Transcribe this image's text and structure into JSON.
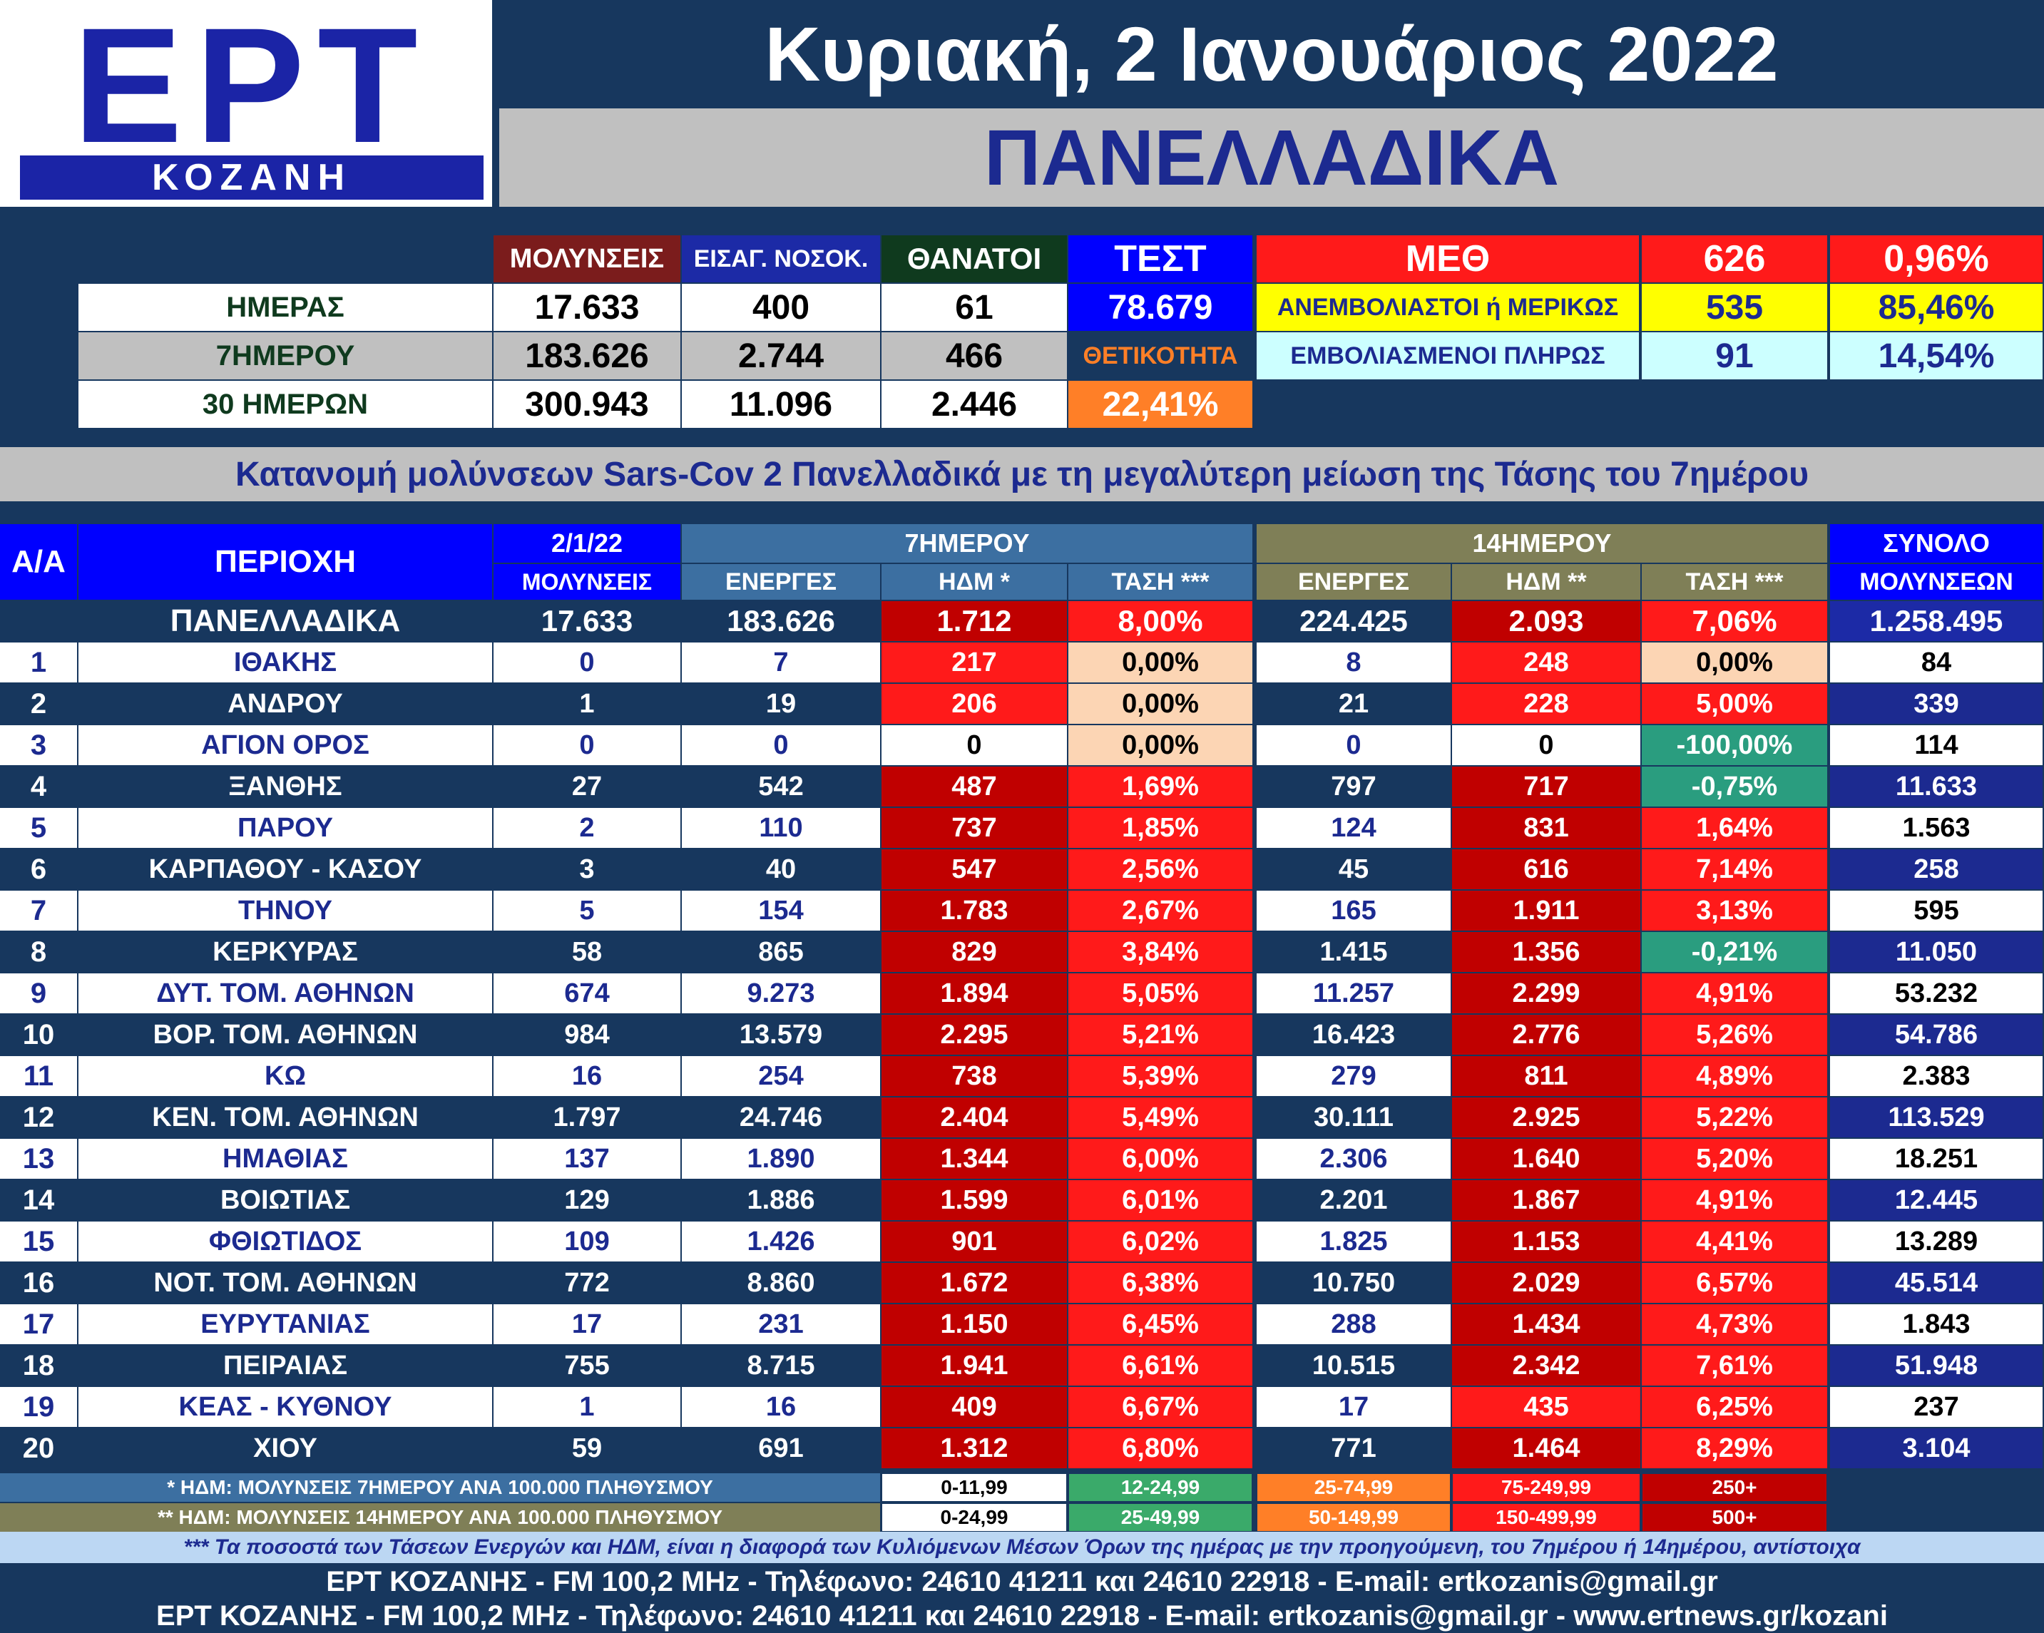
{
  "logo": {
    "title": "ΕΡΤ",
    "subtitle": "ΚΟΖΑΝΗ"
  },
  "date": "Κυριακή, 2 Ιανουάριος 2022",
  "region": "ΠΑΝΕΛΛΑΔΙΚΑ",
  "summary": {
    "headers": {
      "infections": "ΜΟΛΥΝΣΕΙΣ",
      "admissions": "ΕΙΣΑΓ. ΝΟΣΟΚ.",
      "deaths": "ΘΑΝΑΤΟΙ",
      "tests": "ΤΕΣΤ"
    },
    "rows": [
      {
        "label": "ΗΜΕΡΑΣ",
        "infections": "17.633",
        "admissions": "400",
        "deaths": "61"
      },
      {
        "label": "7ΗΜΕΡΟΥ",
        "infections": "183.626",
        "admissions": "2.744",
        "deaths": "466"
      },
      {
        "label": "30 ΗΜΕΡΩΝ",
        "infections": "300.943",
        "admissions": "11.096",
        "deaths": "2.446"
      }
    ],
    "tests_value": "78.679",
    "positivity_label": "ΘΕΤΙΚΟΤΗΤΑ",
    "positivity_value": "22,41%"
  },
  "icu": {
    "label": "ΜΕΘ",
    "total": "626",
    "total_pct": "0,96%",
    "unvaccinated_label": "ΑΝΕΜΒΟΛΙΑΣΤΟΙ ή ΜΕΡΙΚΩΣ",
    "unvaccinated": "535",
    "unvaccinated_pct": "85,46%",
    "vaccinated_label": "ΕΜΒΟΛΙΑΣΜΕΝΟΙ ΠΛΗΡΩΣ",
    "vaccinated": "91",
    "vaccinated_pct": "14,54%"
  },
  "subtitle": "Κατανομή μολύνσεων Sars-Cov 2 Πανελλαδικά με τη μεγαλύτερη μείωση της Τάσης του 7ημέρου",
  "table": {
    "headers": {
      "aa": "Α/Α",
      "region": "ΠΕΡΙΟΧΗ",
      "date": "2/1/22",
      "date_sub": "ΜΟΛΥΝΣΕΙΣ",
      "week": "7ΗΜΕΡΟΥ",
      "fortnight": "14ΗΜΕΡΟΥ",
      "active7": "ΕΝΕΡΓΕΣ",
      "hdm7": "ΗΔΜ *",
      "trend7": "ΤΑΣΗ ***",
      "active14": "ΕΝΕΡΓΕΣ",
      "hdm14": "ΗΔΜ **",
      "trend14": "ΤΑΣΗ ***",
      "total": "ΣΥΝΟΛΟ",
      "total_sub": "ΜΟΛΥΝΣΕΩΝ"
    },
    "national": {
      "name": "ΠΑΝΕΛΛΑΔΙΚΑ",
      "infections": "17.633",
      "active7": "183.626",
      "hdm7": "1.712",
      "trend7": "8,00%",
      "active14": "224.425",
      "hdm14": "2.093",
      "trend14": "7,06%",
      "total": "1.258.495"
    },
    "rows": [
      {
        "aa": "1",
        "name": "ΙΘΑΚΗΣ",
        "infections": "0",
        "active7": "7",
        "hdm7": "217",
        "trend7": "0,00%",
        "active14": "8",
        "hdm14": "248",
        "trend14": "0,00%",
        "total": "84"
      },
      {
        "aa": "2",
        "name": "ΑΝΔΡΟΥ",
        "infections": "1",
        "active7": "19",
        "hdm7": "206",
        "trend7": "0,00%",
        "active14": "21",
        "hdm14": "228",
        "trend14": "5,00%",
        "total": "339"
      },
      {
        "aa": "3",
        "name": "ΑΓΙΟΝ ΟΡΟΣ",
        "infections": "0",
        "active7": "0",
        "hdm7": "0",
        "trend7": "0,00%",
        "active14": "0",
        "hdm14": "0",
        "trend14": "-100,00%",
        "total": "114"
      },
      {
        "aa": "4",
        "name": "ΞΑΝΘΗΣ",
        "infections": "27",
        "active7": "542",
        "hdm7": "487",
        "trend7": "1,69%",
        "active14": "797",
        "hdm14": "717",
        "trend14": "-0,75%",
        "total": "11.633"
      },
      {
        "aa": "5",
        "name": "ΠΑΡΟΥ",
        "infections": "2",
        "active7": "110",
        "hdm7": "737",
        "trend7": "1,85%",
        "active14": "124",
        "hdm14": "831",
        "trend14": "1,64%",
        "total": "1.563"
      },
      {
        "aa": "6",
        "name": "ΚΑΡΠΑΘΟΥ - ΚΑΣΟΥ",
        "infections": "3",
        "active7": "40",
        "hdm7": "547",
        "trend7": "2,56%",
        "active14": "45",
        "hdm14": "616",
        "trend14": "7,14%",
        "total": "258"
      },
      {
        "aa": "7",
        "name": "ΤΗΝΟΥ",
        "infections": "5",
        "active7": "154",
        "hdm7": "1.783",
        "trend7": "2,67%",
        "active14": "165",
        "hdm14": "1.911",
        "trend14": "3,13%",
        "total": "595"
      },
      {
        "aa": "8",
        "name": "ΚΕΡΚΥΡΑΣ",
        "infections": "58",
        "active7": "865",
        "hdm7": "829",
        "trend7": "3,84%",
        "active14": "1.415",
        "hdm14": "1.356",
        "trend14": "-0,21%",
        "total": "11.050"
      },
      {
        "aa": "9",
        "name": "ΔΥΤ. ΤΟΜ. ΑΘΗΝΩΝ",
        "infections": "674",
        "active7": "9.273",
        "hdm7": "1.894",
        "trend7": "5,05%",
        "active14": "11.257",
        "hdm14": "2.299",
        "trend14": "4,91%",
        "total": "53.232"
      },
      {
        "aa": "10",
        "name": "ΒΟΡ. ΤΟΜ. ΑΘΗΝΩΝ",
        "infections": "984",
        "active7": "13.579",
        "hdm7": "2.295",
        "trend7": "5,21%",
        "active14": "16.423",
        "hdm14": "2.776",
        "trend14": "5,26%",
        "total": "54.786"
      },
      {
        "aa": "11",
        "name": "ΚΩ",
        "infections": "16",
        "active7": "254",
        "hdm7": "738",
        "trend7": "5,39%",
        "active14": "279",
        "hdm14": "811",
        "trend14": "4,89%",
        "total": "2.383"
      },
      {
        "aa": "12",
        "name": "ΚΕΝ. ΤΟΜ. ΑΘΗΝΩΝ",
        "infections": "1.797",
        "active7": "24.746",
        "hdm7": "2.404",
        "trend7": "5,49%",
        "active14": "30.111",
        "hdm14": "2.925",
        "trend14": "5,22%",
        "total": "113.529"
      },
      {
        "aa": "13",
        "name": "ΗΜΑΘΙΑΣ",
        "infections": "137",
        "active7": "1.890",
        "hdm7": "1.344",
        "trend7": "6,00%",
        "active14": "2.306",
        "hdm14": "1.640",
        "trend14": "5,20%",
        "total": "18.251"
      },
      {
        "aa": "14",
        "name": "ΒΟΙΩΤΙΑΣ",
        "infections": "129",
        "active7": "1.886",
        "hdm7": "1.599",
        "trend7": "6,01%",
        "active14": "2.201",
        "hdm14": "1.867",
        "trend14": "4,91%",
        "total": "12.445"
      },
      {
        "aa": "15",
        "name": "ΦΘΙΩΤΙΔΟΣ",
        "infections": "109",
        "active7": "1.426",
        "hdm7": "901",
        "trend7": "6,02%",
        "active14": "1.825",
        "hdm14": "1.153",
        "trend14": "4,41%",
        "total": "13.289"
      },
      {
        "aa": "16",
        "name": "ΝΟΤ. ΤΟΜ. ΑΘΗΝΩΝ",
        "infections": "772",
        "active7": "8.860",
        "hdm7": "1.672",
        "trend7": "6,38%",
        "active14": "10.750",
        "hdm14": "2.029",
        "trend14": "6,57%",
        "total": "45.514"
      },
      {
        "aa": "17",
        "name": "ΕΥΡΥΤΑΝΙΑΣ",
        "infections": "17",
        "active7": "231",
        "hdm7": "1.150",
        "trend7": "6,45%",
        "active14": "288",
        "hdm14": "1.434",
        "trend14": "4,73%",
        "total": "1.843"
      },
      {
        "aa": "18",
        "name": "ΠΕΙΡΑΙΑΣ",
        "infections": "755",
        "active7": "8.715",
        "hdm7": "1.941",
        "trend7": "6,61%",
        "active14": "10.515",
        "hdm14": "2.342",
        "trend14": "7,61%",
        "total": "51.948"
      },
      {
        "aa": "19",
        "name": "ΚΕΑΣ - ΚΥΘΝΟΥ",
        "infections": "1",
        "active7": "16",
        "hdm7": "409",
        "trend7": "6,67%",
        "active14": "17",
        "hdm14": "435",
        "trend14": "6,25%",
        "total": "237"
      },
      {
        "aa": "20",
        "name": "ΧΙΟΥ",
        "infections": "59",
        "active7": "691",
        "hdm7": "1.312",
        "trend7": "6,80%",
        "active14": "771",
        "hdm14": "1.464",
        "trend14": "8,29%",
        "total": "3.104"
      }
    ]
  },
  "legend": {
    "note1": "* ΗΔΜ: ΜΟΛΥΝΣΕΙΣ 7ΗΜΕΡΟΥ ΑΝΑ 100.000 ΠΛΗΘΥΣΜΟΥ",
    "note2": "** ΗΔΜ: ΜΟΛΥΝΣΕΙΣ 14ΗΜΕΡΟΥ ΑΝΑ 100.000 ΠΛΗΘΥΣΜΟΥ",
    "ranges7": [
      "0-11,99",
      "12-24,99",
      "25-74,99",
      "75-249,99",
      "250+"
    ],
    "ranges14": [
      "0-24,99",
      "25-49,99",
      "50-149,99",
      "150-499,99",
      "500+"
    ],
    "colors": [
      "#ffffff",
      "#3aaa6a",
      "#ff7f27",
      "#ff1a1a",
      "#c00000"
    ]
  },
  "colors": {
    "navy": "#17375e",
    "blue": "#1c2a90",
    "bright_blue": "#0000ff",
    "maroon": "#7b1c1c",
    "dark_green": "#0f3a1e",
    "orange": "#ff7f27",
    "red": "#ff1a1a",
    "dark_red": "#c00000",
    "yellow": "#ffff00",
    "light_cyan": "#ccffff",
    "peach": "#fcd5b4",
    "teal": "#2a9d7f",
    "steel_blue": "#3c6fa1",
    "olive": "#7f7f57"
  },
  "footnote": "*** Τα ποσοστά των Τάσεων Ενεργών και ΗΔΜ, είναι η διαφορά των Κυλιόμενων Μέσων Όρων της ημέρας με την προηγούμενη, του 7ημέρου ή 14ημέρου, αντίστοιχα",
  "footer": [
    "ΕΡΤ ΚΟΖΑΝΗΣ - FM 100,2 MHz - Τηλέφωνο:  24610 41211 και 24610 22918 - E-mail: ertkozanis@gmail.gr",
    "ΕΡΤ ΚΟΖΑΝΗΣ - FM 100,2 MHz - Τηλέφωνο:  24610 41211 και 24610 22918 - E-mail: ertkozanis@gmail.gr - www.ertnews.gr/kozani"
  ]
}
